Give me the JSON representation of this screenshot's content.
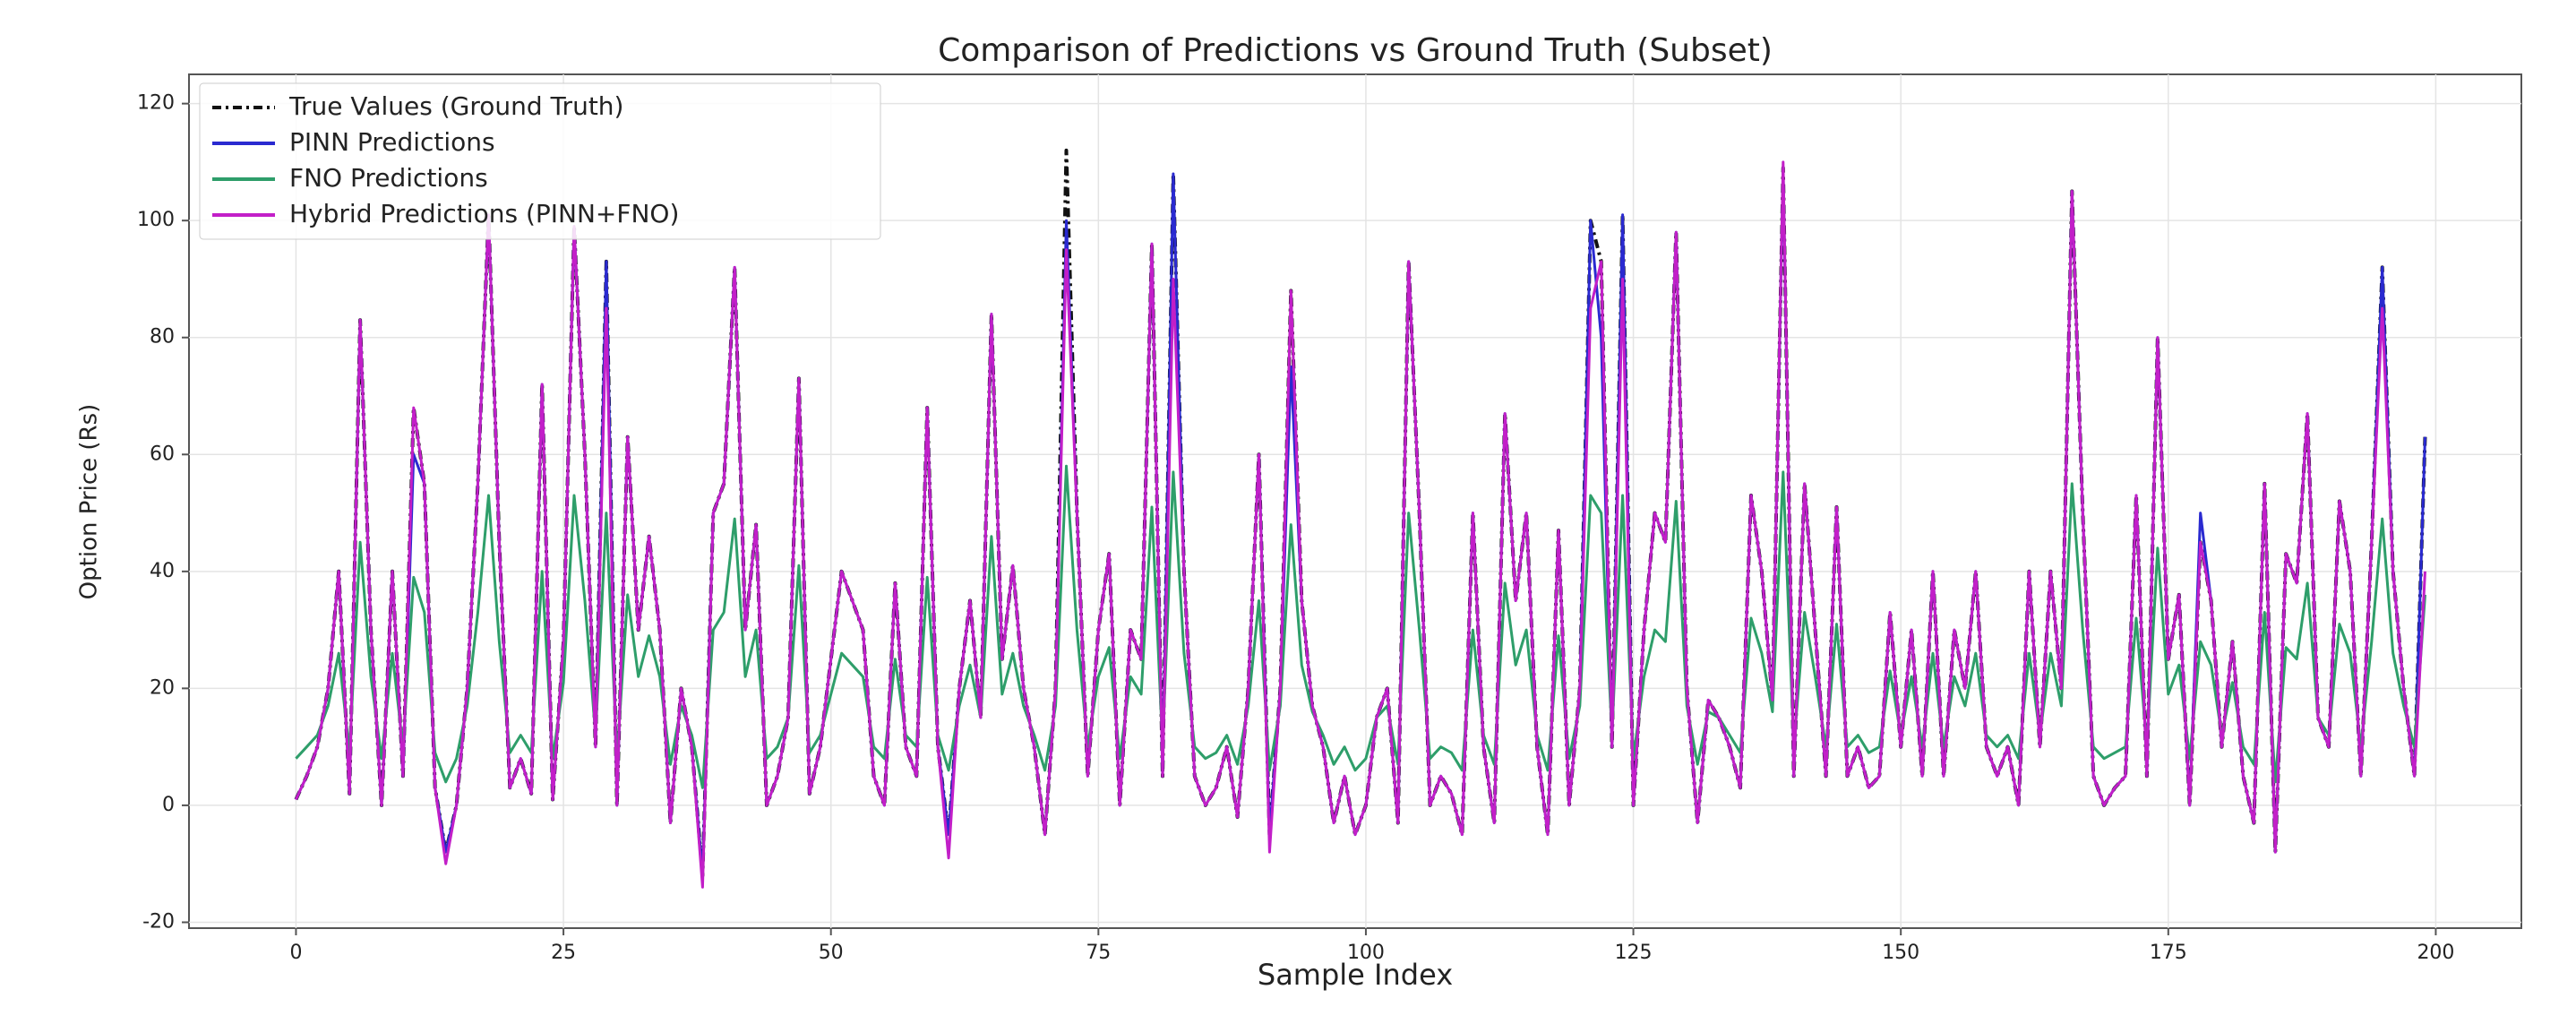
{
  "chart_data": {
    "type": "line",
    "title": "Comparison of Predictions vs Ground Truth (Subset)",
    "x_label": "Sample Index",
    "y_label": "Option Price (Rs)",
    "xlim": [
      -10,
      208
    ],
    "ylim": [
      -21,
      125
    ],
    "xticks": [
      0,
      25,
      50,
      75,
      100,
      125,
      150,
      175,
      200
    ],
    "yticks": [
      -20,
      0,
      20,
      40,
      60,
      80,
      100,
      120
    ],
    "grid": true,
    "legend": "upper-left",
    "x": [
      0,
      1,
      2,
      3,
      4,
      5,
      6,
      7,
      8,
      9,
      10,
      11,
      12,
      13,
      14,
      15,
      16,
      17,
      18,
      19,
      20,
      21,
      22,
      23,
      24,
      25,
      26,
      27,
      28,
      29,
      30,
      31,
      32,
      33,
      34,
      35,
      36,
      37,
      38,
      39,
      40,
      41,
      42,
      43,
      44,
      45,
      46,
      47,
      48,
      49,
      50,
      51,
      52,
      53,
      54,
      55,
      56,
      57,
      58,
      59,
      60,
      61,
      62,
      63,
      64,
      65,
      66,
      67,
      68,
      69,
      70,
      71,
      72,
      73,
      74,
      75,
      76,
      77,
      78,
      79,
      80,
      81,
      82,
      83,
      84,
      85,
      86,
      87,
      88,
      89,
      90,
      91,
      92,
      93,
      94,
      95,
      96,
      97,
      98,
      99,
      100,
      101,
      102,
      103,
      104,
      105,
      106,
      107,
      108,
      109,
      110,
      111,
      112,
      113,
      114,
      115,
      116,
      117,
      118,
      119,
      120,
      121,
      122,
      123,
      124,
      125,
      126,
      127,
      128,
      129,
      130,
      131,
      132,
      133,
      134,
      135,
      136,
      137,
      138,
      139,
      140,
      141,
      142,
      143,
      144,
      145,
      146,
      147,
      148,
      149,
      150,
      151,
      152,
      153,
      154,
      155,
      156,
      157,
      158,
      159,
      160,
      161,
      162,
      163,
      164,
      165,
      166,
      167,
      168,
      169,
      170,
      171,
      172,
      173,
      174,
      175,
      176,
      177,
      178,
      179,
      180,
      181,
      182,
      183,
      184,
      185,
      186,
      187,
      188,
      189,
      190,
      191,
      192,
      193,
      194,
      195,
      196,
      197,
      198,
      199
    ],
    "series": [
      {
        "name": "True Values (Ground Truth)",
        "color": "#111111",
        "dashed": true,
        "values": [
          1,
          5,
          10,
          20,
          40,
          2,
          83,
          30,
          0,
          40,
          5,
          68,
          55,
          3,
          -8,
          0,
          20,
          55,
          101,
          45,
          3,
          8,
          2,
          72,
          1,
          28,
          99,
          60,
          10,
          93,
          0,
          63,
          30,
          46,
          30,
          -3,
          20,
          10,
          -12,
          50,
          55,
          92,
          30,
          48,
          0,
          5,
          15,
          73,
          2,
          10,
          25,
          40,
          35,
          30,
          5,
          0,
          38,
          10,
          5,
          68,
          10,
          -5,
          20,
          35,
          15,
          84,
          25,
          41,
          20,
          10,
          -5,
          20,
          112,
          50,
          5,
          30,
          43,
          0,
          30,
          25,
          96,
          5,
          108,
          40,
          5,
          0,
          3,
          10,
          -2,
          20,
          60,
          -5,
          20,
          88,
          35,
          17,
          10,
          -3,
          5,
          -5,
          0,
          15,
          20,
          -3,
          93,
          50,
          0,
          5,
          2,
          -5,
          50,
          10,
          -3,
          67,
          35,
          50,
          10,
          -5,
          47,
          0,
          20,
          100,
          93,
          10,
          101,
          0,
          30,
          50,
          45,
          98,
          20,
          -3,
          18,
          15,
          10,
          3,
          53,
          40,
          18,
          109,
          5,
          55,
          30,
          5,
          51,
          5,
          10,
          3,
          5,
          33,
          10,
          30,
          5,
          40,
          5,
          30,
          20,
          40,
          10,
          5,
          10,
          0,
          40,
          10,
          40,
          20,
          105,
          50,
          5,
          0,
          3,
          5,
          53,
          5,
          80,
          25,
          36,
          0,
          45,
          35,
          10,
          28,
          5,
          -3,
          55,
          -8,
          43,
          38,
          67,
          15,
          10,
          52,
          40,
          5,
          45,
          92,
          40,
          20,
          5,
          63
        ]
      },
      {
        "name": "PINN Predictions",
        "color": "#2a2ad0",
        "dashed": false,
        "values": [
          1,
          5,
          10,
          20,
          40,
          2,
          83,
          30,
          0,
          40,
          5,
          60,
          55,
          3,
          -8,
          0,
          20,
          55,
          101,
          45,
          3,
          8,
          2,
          72,
          1,
          28,
          99,
          60,
          10,
          93,
          0,
          63,
          30,
          46,
          30,
          -3,
          20,
          10,
          -12,
          50,
          55,
          92,
          30,
          48,
          0,
          5,
          15,
          73,
          2,
          10,
          25,
          40,
          35,
          30,
          5,
          0,
          38,
          10,
          5,
          68,
          10,
          -5,
          20,
          35,
          15,
          84,
          25,
          41,
          20,
          10,
          -5,
          20,
          100,
          50,
          5,
          30,
          43,
          0,
          30,
          25,
          96,
          5,
          108,
          40,
          5,
          0,
          3,
          10,
          -2,
          20,
          60,
          -5,
          20,
          75,
          35,
          17,
          10,
          -3,
          5,
          -5,
          0,
          15,
          20,
          -3,
          93,
          50,
          0,
          5,
          2,
          -5,
          50,
          10,
          -3,
          67,
          35,
          50,
          10,
          -5,
          47,
          0,
          20,
          100,
          80,
          10,
          101,
          0,
          30,
          50,
          45,
          98,
          20,
          -3,
          18,
          15,
          10,
          3,
          53,
          40,
          18,
          109,
          5,
          55,
          30,
          5,
          51,
          5,
          10,
          3,
          5,
          33,
          10,
          30,
          5,
          40,
          5,
          30,
          20,
          40,
          10,
          5,
          10,
          0,
          40,
          10,
          40,
          20,
          105,
          50,
          5,
          0,
          3,
          5,
          53,
          5,
          80,
          25,
          36,
          0,
          50,
          35,
          10,
          28,
          5,
          -3,
          55,
          -8,
          43,
          38,
          67,
          15,
          10,
          52,
          40,
          5,
          45,
          92,
          40,
          20,
          5,
          63
        ]
      },
      {
        "name": "FNO Predictions",
        "color": "#2e9e6a",
        "dashed": false,
        "values": [
          8,
          10,
          12,
          17,
          26,
          9,
          45,
          22,
          8,
          26,
          10,
          39,
          33,
          9,
          4,
          8,
          17,
          33,
          53,
          28,
          9,
          12,
          9,
          40,
          8,
          21,
          53,
          35,
          12,
          50,
          8,
          36,
          22,
          29,
          22,
          7,
          17,
          12,
          3,
          30,
          33,
          49,
          22,
          30,
          8,
          10,
          15,
          41,
          9,
          12,
          19,
          26,
          24,
          22,
          10,
          8,
          25,
          12,
          10,
          39,
          12,
          6,
          17,
          24,
          15,
          46,
          19,
          26,
          17,
          12,
          6,
          17,
          58,
          30,
          10,
          22,
          27,
          8,
          22,
          19,
          51,
          10,
          57,
          26,
          10,
          8,
          9,
          12,
          7,
          17,
          35,
          6,
          17,
          48,
          24,
          16,
          12,
          7,
          10,
          6,
          8,
          15,
          17,
          7,
          50,
          30,
          8,
          10,
          9,
          6,
          30,
          12,
          7,
          38,
          24,
          30,
          12,
          6,
          29,
          8,
          17,
          53,
          50,
          12,
          53,
          8,
          22,
          30,
          28,
          52,
          17,
          7,
          16,
          15,
          12,
          9,
          32,
          26,
          16,
          57,
          10,
          33,
          22,
          10,
          31,
          10,
          12,
          9,
          10,
          23,
          12,
          22,
          10,
          26,
          10,
          22,
          17,
          26,
          12,
          10,
          12,
          8,
          26,
          12,
          26,
          17,
          55,
          30,
          10,
          8,
          9,
          10,
          32,
          10,
          44,
          19,
          24,
          8,
          28,
          24,
          12,
          21,
          10,
          7,
          33,
          4,
          27,
          25,
          38,
          15,
          12,
          31,
          26,
          10,
          28,
          49,
          26,
          17,
          10,
          36
        ]
      },
      {
        "name": "Hybrid Predictions (PINN+FNO)",
        "color": "#c21fc8",
        "dashed": false,
        "values": [
          1,
          5,
          10,
          20,
          40,
          2,
          83,
          30,
          0,
          40,
          5,
          68,
          55,
          3,
          -10,
          0,
          20,
          55,
          101,
          45,
          3,
          8,
          2,
          72,
          1,
          28,
          99,
          60,
          10,
          85,
          0,
          63,
          30,
          46,
          30,
          -3,
          20,
          10,
          -14,
          50,
          55,
          92,
          30,
          48,
          0,
          5,
          15,
          73,
          2,
          10,
          25,
          40,
          35,
          30,
          5,
          0,
          38,
          10,
          5,
          68,
          10,
          -9,
          20,
          35,
          15,
          84,
          25,
          41,
          20,
          10,
          -5,
          20,
          95,
          50,
          5,
          30,
          43,
          0,
          30,
          25,
          96,
          5,
          90,
          40,
          5,
          0,
          3,
          10,
          -2,
          20,
          60,
          -8,
          20,
          88,
          35,
          17,
          10,
          -3,
          5,
          -5,
          0,
          15,
          20,
          -3,
          93,
          50,
          0,
          5,
          2,
          -5,
          50,
          10,
          -3,
          67,
          35,
          50,
          10,
          -5,
          47,
          0,
          20,
          85,
          93,
          10,
          90,
          0,
          30,
          50,
          45,
          98,
          20,
          -3,
          18,
          15,
          10,
          3,
          53,
          40,
          18,
          110,
          5,
          55,
          30,
          5,
          51,
          5,
          10,
          3,
          5,
          33,
          10,
          30,
          5,
          40,
          5,
          30,
          20,
          40,
          10,
          5,
          10,
          0,
          40,
          10,
          40,
          20,
          105,
          50,
          5,
          0,
          3,
          5,
          53,
          5,
          80,
          25,
          36,
          0,
          45,
          35,
          10,
          28,
          5,
          -3,
          55,
          -8,
          43,
          38,
          67,
          15,
          10,
          52,
          40,
          5,
          45,
          85,
          40,
          20,
          5,
          40
        ]
      }
    ]
  }
}
